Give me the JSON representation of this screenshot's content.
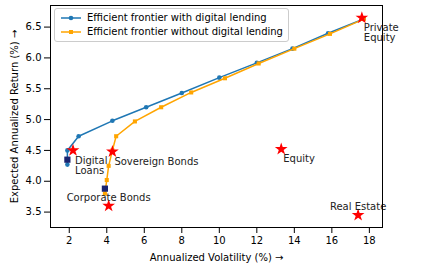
{
  "chart_data": {
    "type": "line",
    "xlabel": "Annualized Volatility (%)",
    "ylabel": "Expected Annualized Return (%)",
    "xlim": [
      1.0,
      18.7
    ],
    "ylim": [
      3.25,
      6.85
    ],
    "xticks": [
      2,
      4,
      6,
      8,
      10,
      12,
      14,
      16,
      18
    ],
    "yticks": [
      3.5,
      {
        "value": 4,
        "label": "4.0"
      },
      4.5,
      {
        "value": 5,
        "label": "5.0"
      },
      5.5,
      {
        "value": 6,
        "label": "6.0"
      },
      6.5
    ],
    "grid": false,
    "legend": "upper left",
    "series": [
      {
        "name": "Efficient frontier with digital lending",
        "color": "#1f77b4",
        "marker": "circle",
        "line_style": "solid",
        "x": [
          1.9,
          1.9,
          2.5,
          4.3,
          6.1,
          8.0,
          10.0,
          12.0,
          13.9,
          15.8,
          17.7
        ],
        "values": [
          4.27,
          4.5,
          4.73,
          4.98,
          5.2,
          5.43,
          5.68,
          5.92,
          6.15,
          6.4,
          6.63
        ]
      },
      {
        "name": "Efficient frontier without digital lending",
        "color": "#ffa500",
        "marker": "square",
        "line_style": "solid",
        "x": [
          3.9,
          4.0,
          4.1,
          4.3,
          4.5,
          5.5,
          6.9,
          8.5,
          10.3,
          12.1,
          14.0,
          15.9,
          17.7
        ],
        "values": [
          3.8,
          4.02,
          4.25,
          4.5,
          4.73,
          4.97,
          5.2,
          5.44,
          5.67,
          5.91,
          6.15,
          6.39,
          6.63
        ]
      }
    ],
    "assets": {
      "type": "scatter",
      "color": "red",
      "marker": "star",
      "points": [
        {
          "label": "Digital\nLoans",
          "x": 2.2,
          "y": 4.5
        },
        {
          "label": "Sovereign Bonds",
          "x": 4.3,
          "y": 4.48
        },
        {
          "label": "Corporate Bonds",
          "x": 4.1,
          "y": 3.6
        },
        {
          "label": "Equity",
          "x": 13.3,
          "y": 4.52
        },
        {
          "label": "Real Estate",
          "x": 17.4,
          "y": 3.45
        },
        {
          "label": "Private\nEquity",
          "x": 17.6,
          "y": 6.65
        }
      ]
    },
    "portfolios": {
      "type": "scatter",
      "color": "#1a2470",
      "marker": "square",
      "x": [
        1.9,
        3.9
      ],
      "y": [
        4.35,
        3.88
      ]
    }
  }
}
